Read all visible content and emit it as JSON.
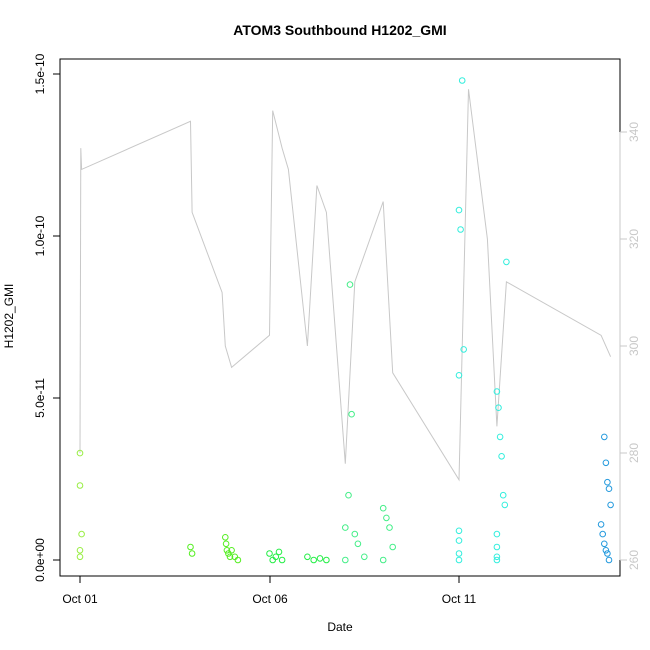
{
  "chart_data": {
    "type": "scatter",
    "title": "ATOM3 Southbound H1202_GMI",
    "xlabel": "Date",
    "ylabel": "H1202_GMI",
    "x_ticks": [
      "Oct 01",
      "Oct 06",
      "Oct 11"
    ],
    "y_ticks": [
      "0.0e+00",
      "5.0e-11",
      "1.0e-10",
      "1.5e-10"
    ],
    "y2_ticks": [
      "260",
      "280",
      "300",
      "320",
      "340"
    ],
    "xlim": [
      "2016-10-01",
      "2016-10-15"
    ],
    "ylim": [
      0,
      1.5e-10
    ],
    "y2lim": [
      260,
      345
    ],
    "colors": {
      "trace": "#c8c8c8",
      "secondary_axis": "#c8c8c8"
    },
    "secondary_series": {
      "description": "grey trace on right axis",
      "points": [
        [
          "2016-10-01T00:00",
          280
        ],
        [
          "2016-10-01T00:30",
          337
        ],
        [
          "2016-10-01T01:00",
          333
        ],
        [
          "2016-10-03T22:00",
          342
        ],
        [
          "2016-10-03T23:00",
          325
        ],
        [
          "2016-10-04T18:00",
          310
        ],
        [
          "2016-10-04T20:00",
          300
        ],
        [
          "2016-10-05T00:00",
          296
        ],
        [
          "2016-10-06T00:00",
          302
        ],
        [
          "2016-10-06T02:00",
          344
        ],
        [
          "2016-10-06T08:00",
          337
        ],
        [
          "2016-10-06T12:00",
          333
        ],
        [
          "2016-10-07T00:00",
          300
        ],
        [
          "2016-10-07T06:00",
          330
        ],
        [
          "2016-10-07T12:00",
          325
        ],
        [
          "2016-10-08T00:00",
          278
        ],
        [
          "2016-10-08T06:00",
          312
        ],
        [
          "2016-10-09T00:00",
          327
        ],
        [
          "2016-10-09T06:00",
          295
        ],
        [
          "2016-10-11T00:00",
          275
        ],
        [
          "2016-10-11T06:00",
          348
        ],
        [
          "2016-10-11T18:00",
          320
        ],
        [
          "2016-10-12T00:00",
          285
        ],
        [
          "2016-10-12T06:00",
          312
        ],
        [
          "2016-10-14T18:00",
          302
        ],
        [
          "2016-10-15T00:00",
          298
        ]
      ]
    },
    "series": [
      {
        "color": "#99ee44",
        "points": [
          [
            "2016-10-01T00:00",
            3.3e-11
          ],
          [
            "2016-10-01T00:00",
            2.3e-11
          ],
          [
            "2016-10-01T01:00",
            8e-12
          ],
          [
            "2016-10-01T00:00",
            3e-12
          ],
          [
            "2016-10-01T00:00",
            1e-12
          ]
        ]
      },
      {
        "color": "#55ee22",
        "points": [
          [
            "2016-10-03T22:00",
            4e-12
          ],
          [
            "2016-10-03T23:00",
            2e-12
          ],
          [
            "2016-10-04T20:00",
            7e-12
          ],
          [
            "2016-10-04T20:30",
            5e-12
          ],
          [
            "2016-10-04T21:00",
            3e-12
          ],
          [
            "2016-10-04T22:00",
            2e-12
          ],
          [
            "2016-10-04T23:00",
            1e-12
          ],
          [
            "2016-10-05T00:00",
            3e-12
          ],
          [
            "2016-10-05T02:00",
            1e-12
          ],
          [
            "2016-10-05T04:00",
            0
          ]
        ]
      },
      {
        "color": "#22ee44",
        "points": [
          [
            "2016-10-06T00:00",
            2e-12
          ],
          [
            "2016-10-06T02:00",
            0
          ],
          [
            "2016-10-06T04:00",
            1e-12
          ],
          [
            "2016-10-06T06:00",
            2.5e-12
          ],
          [
            "2016-10-06T08:00",
            0
          ],
          [
            "2016-10-07T00:00",
            1e-12
          ],
          [
            "2016-10-07T04:00",
            0
          ],
          [
            "2016-10-07T08:00",
            5e-13
          ],
          [
            "2016-10-07T12:00",
            0
          ]
        ]
      },
      {
        "color": "#44ee88",
        "points": [
          [
            "2016-10-08T00:00",
            1e-11
          ],
          [
            "2016-10-08T02:00",
            2e-11
          ],
          [
            "2016-10-08T03:00",
            8.5e-11
          ],
          [
            "2016-10-08T04:00",
            4.5e-11
          ],
          [
            "2016-10-08T06:00",
            8e-12
          ],
          [
            "2016-10-08T08:00",
            5e-12
          ],
          [
            "2016-10-08T00:00",
            0
          ],
          [
            "2016-10-08T12:00",
            1e-12
          ],
          [
            "2016-10-09T00:00",
            1.6e-11
          ],
          [
            "2016-10-09T02:00",
            1.3e-11
          ],
          [
            "2016-10-09T04:00",
            1e-11
          ],
          [
            "2016-10-09T06:00",
            4e-12
          ],
          [
            "2016-10-09T00:00",
            0
          ]
        ]
      },
      {
        "color": "#33eedd",
        "points": [
          [
            "2016-10-11T00:00",
            1.08e-10
          ],
          [
            "2016-10-11T01:00",
            1.02e-10
          ],
          [
            "2016-10-11T02:00",
            1.48e-10
          ],
          [
            "2016-10-11T03:00",
            6.5e-11
          ],
          [
            "2016-10-11T00:00",
            5.7e-11
          ],
          [
            "2016-10-11T00:00",
            9e-12
          ],
          [
            "2016-10-11T00:00",
            6e-12
          ],
          [
            "2016-10-11T00:00",
            2e-12
          ],
          [
            "2016-10-11T00:00",
            0
          ],
          [
            "2016-10-12T00:00",
            5.2e-11
          ],
          [
            "2016-10-12T01:00",
            4.7e-11
          ],
          [
            "2016-10-12T02:00",
            3.8e-11
          ],
          [
            "2016-10-12T03:00",
            3.2e-11
          ],
          [
            "2016-10-12T04:00",
            2e-11
          ],
          [
            "2016-10-12T05:00",
            1.7e-11
          ],
          [
            "2016-10-12T06:00",
            9.2e-11
          ],
          [
            "2016-10-12T00:00",
            8e-12
          ],
          [
            "2016-10-12T00:00",
            4e-12
          ],
          [
            "2016-10-12T00:00",
            1e-12
          ],
          [
            "2016-10-12T00:00",
            0
          ]
        ]
      },
      {
        "color": "#2299dd",
        "points": [
          [
            "2016-10-14T20:00",
            3.8e-11
          ],
          [
            "2016-10-14T21:00",
            3e-11
          ],
          [
            "2016-10-14T22:00",
            2.4e-11
          ],
          [
            "2016-10-14T23:00",
            2.2e-11
          ],
          [
            "2016-10-15T00:00",
            1.7e-11
          ],
          [
            "2016-10-14T18:00",
            1.1e-11
          ],
          [
            "2016-10-14T19:00",
            8e-12
          ],
          [
            "2016-10-14T20:00",
            5e-12
          ],
          [
            "2016-10-14T21:00",
            3e-12
          ],
          [
            "2016-10-14T22:00",
            2e-12
          ],
          [
            "2016-10-14T23:00",
            0
          ]
        ]
      }
    ]
  }
}
